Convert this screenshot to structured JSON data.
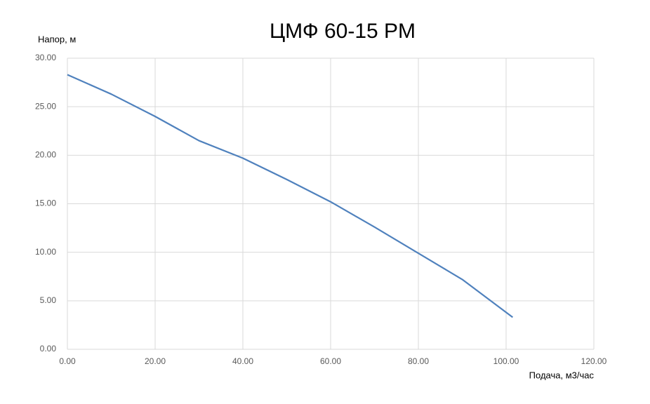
{
  "chart_data": {
    "type": "line",
    "title": "ЦМФ 60-15 PM",
    "y_label": "Напор, м",
    "x_label": "Подача, м3/час",
    "x": [
      0,
      10,
      20,
      30,
      40,
      50,
      60,
      70,
      80,
      90,
      101.5
    ],
    "series": [
      {
        "name": "Напор",
        "color": "#4f81bd",
        "values": [
          28.3,
          26.3,
          24.0,
          21.5,
          19.7,
          17.5,
          15.2,
          12.6,
          9.9,
          7.2,
          3.3
        ]
      }
    ],
    "xlim": [
      0,
      120
    ],
    "xticks": [
      {
        "value": 0,
        "label": "0.00"
      },
      {
        "value": 20,
        "label": "20.00"
      },
      {
        "value": 40,
        "label": "40.00"
      },
      {
        "value": 60,
        "label": "60.00"
      },
      {
        "value": 80,
        "label": "80.00"
      },
      {
        "value": 100,
        "label": "100.00"
      },
      {
        "value": 120,
        "label": "120.00"
      }
    ],
    "ylim": [
      0,
      30
    ],
    "yticks": [
      {
        "value": 0,
        "label": "0.00"
      },
      {
        "value": 5,
        "label": "5.00"
      },
      {
        "value": 10,
        "label": "10.00"
      },
      {
        "value": 15,
        "label": "15.00"
      },
      {
        "value": 20,
        "label": "20.00"
      },
      {
        "value": 25,
        "label": "25.00"
      },
      {
        "value": 30,
        "label": "30.00"
      }
    ],
    "grid": true
  }
}
